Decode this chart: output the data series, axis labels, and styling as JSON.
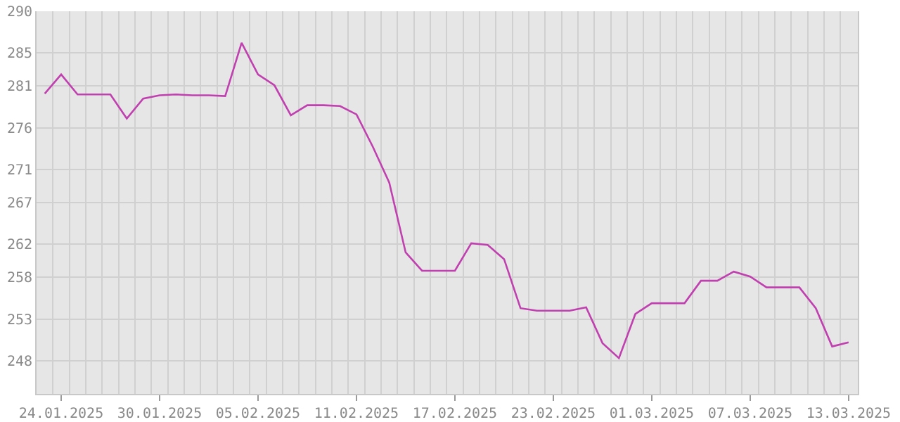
{
  "chart_data": {
    "type": "line",
    "x": [
      "2025-01-23",
      "2025-01-24",
      "2025-01-25",
      "2025-01-26",
      "2025-01-27",
      "2025-01-28",
      "2025-01-29",
      "2025-01-30",
      "2025-01-31",
      "2025-02-01",
      "2025-02-02",
      "2025-02-03",
      "2025-02-04",
      "2025-02-05",
      "2025-02-06",
      "2025-02-07",
      "2025-02-08",
      "2025-02-09",
      "2025-02-10",
      "2025-02-11",
      "2025-02-12",
      "2025-02-13",
      "2025-02-14",
      "2025-02-15",
      "2025-02-16",
      "2025-02-17",
      "2025-02-18",
      "2025-02-19",
      "2025-02-20",
      "2025-02-21",
      "2025-02-22",
      "2025-02-23",
      "2025-02-24",
      "2025-02-25",
      "2025-02-26",
      "2025-02-27",
      "2025-02-28",
      "2025-03-01",
      "2025-03-02",
      "2025-03-03",
      "2025-03-04",
      "2025-03-05",
      "2025-03-06",
      "2025-03-07",
      "2025-03-08",
      "2025-03-09",
      "2025-03-10",
      "2025-03-11",
      "2025-03-12",
      "2025-03-13"
    ],
    "series": [
      {
        "color": "#c040b0",
        "values": [
          280.1,
          282.4,
          280.0,
          280.0,
          280.0,
          277.1,
          279.5,
          279.9,
          280.0,
          279.9,
          279.9,
          279.8,
          286.2,
          282.4,
          281.1,
          277.5,
          278.7,
          278.7,
          278.6,
          277.6,
          273.7,
          269.4,
          261.0,
          258.8,
          258.8,
          258.8,
          262.1,
          261.9,
          260.2,
          254.3,
          254.0,
          254.0,
          254.0,
          254.4,
          250.1,
          248.3,
          253.6,
          254.9,
          254.9,
          254.9,
          257.6,
          257.6,
          258.7,
          258.1,
          256.8,
          256.8,
          256.8,
          254.3,
          249.7,
          250.2
        ]
      }
    ],
    "xlim": [
      "2025-01-22T12:00",
      "2025-03-13T13:30"
    ],
    "xticks": [
      {
        "value": "2025-01-24",
        "label": "24.01.2025"
      },
      {
        "value": "2025-01-30",
        "label": "30.01.2025"
      },
      {
        "value": "2025-02-05",
        "label": "05.02.2025"
      },
      {
        "value": "2025-02-11",
        "label": "11.02.2025"
      },
      {
        "value": "2025-02-17",
        "label": "17.02.2025"
      },
      {
        "value": "2025-02-23",
        "label": "23.02.2025"
      },
      {
        "value": "2025-03-01",
        "label": "01.03.2025"
      },
      {
        "value": "2025-03-07",
        "label": "07.03.2025"
      },
      {
        "value": "2025-03-13",
        "label": "13.03.2025"
      }
    ],
    "ylim": [
      244,
      290
    ],
    "yticks": [
      290,
      285,
      281,
      276,
      271,
      267,
      262,
      258,
      253,
      248
    ],
    "grid": true,
    "marker": "none",
    "line_style": "solid"
  }
}
